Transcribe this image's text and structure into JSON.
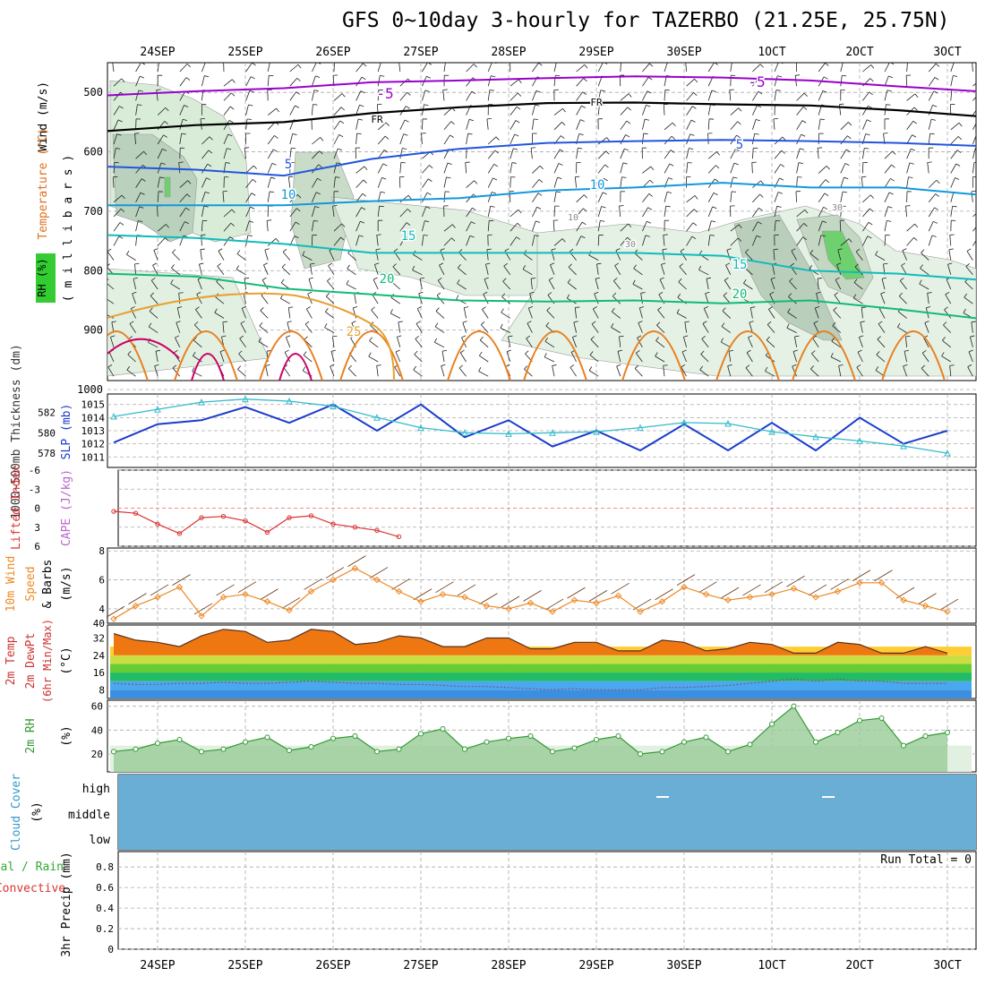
{
  "title": "GFS 0~10day 3-hourly for TAZERBO (21.25E, 25.75N)",
  "x_day_labels": [
    "24SEP",
    "25SEP",
    "26SEP",
    "27SEP",
    "28SEP",
    "29SEP",
    "30SEP",
    "1OCT",
    "2OCT",
    "3OCT"
  ],
  "colors": {
    "grid": "#aaaaaa",
    "temp_neg5": "#9900cc",
    "temp_fr": "#000000",
    "temp_5": "#2255dd",
    "temp_10": "#1199dd",
    "temp_15": "#11bbbb",
    "temp_20": "#11bb77",
    "temp_25": "#e8a030",
    "temp_30": "#e88020",
    "temp_35": "#cc0066",
    "slp": "#1a3ccc",
    "thickness": "#33bbcc",
    "lifted_index": "#dd3333",
    "wind_speed": "#ee8822",
    "cloud": "#6aaed6",
    "rh_line": "#339933",
    "rh_fill": "#99cc99"
  },
  "panels": {
    "upper": {
      "ylabel_left_parts": [
        "RH (%)",
        "Temperature (°C)",
        "Wind (m/s)"
      ],
      "ylabel_right": "( m i l l i b a r s )",
      "rh_legend_label": "RH (%)",
      "y_ticks": [
        "500",
        "600",
        "700",
        "800",
        "900",
        "1000"
      ],
      "contour_labels": [
        "-5",
        "FR",
        "5",
        "10",
        "15",
        "20",
        "25",
        "30",
        "10",
        "30",
        "-5",
        "FR",
        "5",
        "10",
        "15",
        "20"
      ]
    },
    "slp": {
      "ylabel_left": "1000~500mb Thickness (dm)",
      "ylabel_right": "SLP (mb)",
      "left_ticks": [
        "582",
        "580",
        "578"
      ],
      "right_ticks": [
        "1015",
        "1014",
        "1013",
        "1012",
        "1011"
      ]
    },
    "cape": {
      "ylabel_left": "Lifted Index",
      "ylabel_right": "CAPE (J/kg)",
      "ticks": [
        "-6",
        "-3",
        "0",
        "3",
        "6"
      ]
    },
    "wind": {
      "ylabel_1": "10m Wind",
      "ylabel_2": "Speed",
      "ylabel_3": "& Barbs",
      "unit": "(m/s)",
      "ticks": [
        "8",
        "6",
        "4",
        "40"
      ]
    },
    "temp": {
      "ylabel_1": "2m Temp",
      "ylabel_2": "2m DewPt",
      "ylabel_3": "(6hr Min/Max)",
      "unit": "(°C)",
      "ticks": [
        "32",
        "24",
        "16",
        "8"
      ]
    },
    "rh2m": {
      "ylabel": "2m RH",
      "unit": "(%)",
      "ticks": [
        "60",
        "40",
        "20"
      ]
    },
    "cloud": {
      "ylabel": "Cloud Cover",
      "unit": "(%)",
      "levels": [
        "high",
        "middle",
        "low"
      ]
    },
    "precip": {
      "ylabel_total": "Total / Rain",
      "ylabel_conv": "Convective",
      "ylabel_axis": "3hr Precip (mm)",
      "ticks": [
        "0.8",
        "0.6",
        "0.4",
        "0.2",
        "0"
      ],
      "run_total": "Run Total = 0"
    }
  },
  "chart_data": [
    {
      "type": "line",
      "name": "upper-air temperature contours (°C) vs pressure (mb)",
      "y_axis": "pressure_mb",
      "ylim": [
        1000,
        450
      ],
      "x_days": [
        0,
        1,
        2,
        3,
        4,
        5,
        6,
        7,
        8,
        9,
        9.5
      ],
      "series": [
        {
          "name": "-5",
          "values": [
            505,
            498,
            493,
            483,
            480,
            476,
            473,
            475,
            480,
            490,
            498
          ]
        },
        {
          "name": "FR",
          "values": [
            565,
            555,
            550,
            535,
            525,
            518,
            517,
            520,
            522,
            530,
            540
          ]
        },
        {
          "name": "5",
          "values": [
            625,
            630,
            640,
            612,
            595,
            585,
            582,
            580,
            582,
            585,
            590
          ]
        },
        {
          "name": "10",
          "values": [
            690,
            690,
            690,
            683,
            678,
            665,
            660,
            652,
            660,
            660,
            672
          ]
        },
        {
          "name": "15",
          "values": [
            740,
            745,
            755,
            770,
            770,
            770,
            770,
            775,
            800,
            805,
            815
          ]
        },
        {
          "name": "20",
          "values": [
            805,
            810,
            830,
            840,
            850,
            852,
            850,
            855,
            850,
            865,
            880
          ]
        }
      ]
    },
    {
      "type": "line",
      "name": "SLP and thickness",
      "x_days": [
        0,
        0.5,
        1,
        1.5,
        2,
        2.5,
        3,
        3.5,
        4,
        4.5,
        5,
        5.5,
        6,
        6.5,
        7,
        7.5,
        8,
        8.5,
        9,
        9.5
      ],
      "series": [
        {
          "name": "SLP",
          "values": [
            1012.1,
            1013.5,
            1013.8,
            1014.8,
            1013.6,
            1015.0,
            1013.0,
            1015.0,
            1012.5,
            1013.8,
            1011.8,
            1013.0,
            1011.5,
            1013.5,
            1011.5,
            1013.6,
            1011.5,
            1014.0,
            1012.0,
            1013.0
          ]
        },
        {
          "name": "Thickness",
          "values": [
            581.6,
            582.3,
            583.0,
            583.3,
            583.1,
            582.6,
            581.5,
            580.5,
            580.0,
            579.9,
            580.0,
            580.1,
            580.5,
            581.0,
            580.9,
            580.1,
            579.6,
            579.2,
            578.7,
            578.0
          ]
        }
      ]
    },
    {
      "type": "line",
      "name": "Lifted Index",
      "ylim": [
        6,
        -6
      ],
      "x_days": [
        0,
        0.25,
        0.5,
        0.75,
        1,
        1.25,
        1.5,
        1.75,
        2,
        2.25,
        2.5,
        2.75,
        3,
        3.25
      ],
      "series": [
        {
          "name": "Lifted Index",
          "values": [
            0.5,
            0.8,
            2.5,
            4.0,
            1.5,
            1.3,
            2.0,
            3.8,
            1.5,
            1.2,
            2.5,
            3.0,
            3.5,
            4.5
          ]
        }
      ]
    },
    {
      "type": "line",
      "name": "10m Wind Speed",
      "ylim": [
        3,
        8
      ],
      "x_days": [
        0,
        0.25,
        0.5,
        0.75,
        1,
        1.25,
        1.5,
        1.75,
        2,
        2.25,
        2.5,
        2.75,
        3,
        3.25,
        3.5,
        3.75,
        4,
        4.25,
        4.5,
        4.75,
        5,
        5.25,
        5.5,
        5.75,
        6,
        6.25,
        6.5,
        6.75,
        7,
        7.25,
        7.5,
        7.75,
        8,
        8.25,
        8.5,
        8.75,
        9,
        9.25,
        9.5
      ],
      "series": [
        {
          "name": "Speed",
          "values": [
            3.3,
            4.2,
            4.8,
            5.5,
            3.5,
            4.8,
            5.0,
            4.5,
            3.9,
            5.2,
            6.0,
            6.8,
            6.0,
            5.2,
            4.5,
            5.0,
            4.8,
            4.2,
            4.0,
            4.4,
            3.8,
            4.6,
            4.4,
            4.9,
            3.8,
            4.5,
            5.5,
            5.0,
            4.6,
            4.8,
            5.0,
            5.4,
            4.8,
            5.2,
            5.8,
            5.8,
            4.6,
            4.2,
            3.8
          ]
        }
      ]
    },
    {
      "type": "area",
      "name": "2m Temp and DewPt",
      "ylim": [
        4,
        38
      ],
      "x_days": [
        0,
        0.25,
        0.5,
        0.75,
        1,
        1.25,
        1.5,
        1.75,
        2,
        2.25,
        2.5,
        2.75,
        3,
        3.25,
        3.5,
        3.75,
        4,
        4.25,
        4.5,
        4.75,
        5,
        5.25,
        5.5,
        5.75,
        6,
        6.25,
        6.5,
        6.75,
        7,
        7.25,
        7.5,
        7.75,
        8,
        8.25,
        8.5,
        8.75,
        9,
        9.25,
        9.5
      ],
      "series": [
        {
          "name": "2m Temp",
          "values": [
            34,
            31,
            30,
            28,
            33,
            36,
            35,
            30,
            31,
            36,
            35,
            29,
            30,
            33,
            32,
            28,
            28,
            32,
            32,
            27,
            27,
            30,
            30,
            26,
            26,
            31,
            30,
            26,
            27,
            30,
            29,
            25,
            25,
            30,
            29,
            25,
            25,
            28,
            25
          ]
        },
        {
          "name": "2m DewPt",
          "values": [
            11,
            10.5,
            10.5,
            11,
            11,
            11.5,
            11,
            11,
            11.5,
            12,
            11.5,
            11,
            11,
            10.5,
            10.5,
            10,
            9.5,
            9.5,
            9,
            8.5,
            8,
            8.5,
            8,
            8,
            8,
            9,
            9,
            9.5,
            10,
            11,
            12,
            13,
            12,
            13,
            12,
            12,
            11,
            11,
            11
          ]
        }
      ]
    },
    {
      "type": "area",
      "name": "2m RH",
      "ylim": [
        5,
        65
      ],
      "x_days": [
        0,
        0.25,
        0.5,
        0.75,
        1,
        1.25,
        1.5,
        1.75,
        2,
        2.25,
        2.5,
        2.75,
        3,
        3.25,
        3.5,
        3.75,
        4,
        4.25,
        4.5,
        4.75,
        5,
        5.25,
        5.5,
        5.75,
        6,
        6.25,
        6.5,
        6.75,
        7,
        7.25,
        7.5,
        7.75,
        8,
        8.25,
        8.5,
        8.75,
        9,
        9.25,
        9.5
      ],
      "series": [
        {
          "name": "2m RH",
          "values": [
            22,
            24,
            29,
            32,
            22,
            24,
            30,
            34,
            23,
            26,
            33,
            35,
            22,
            24,
            37,
            41,
            24,
            30,
            33,
            35,
            22,
            25,
            32,
            35,
            20,
            22,
            30,
            34,
            22,
            28,
            45,
            60,
            30,
            38,
            48,
            50,
            27,
            35,
            38
          ]
        }
      ]
    },
    {
      "type": "bar",
      "name": "3hr Precip",
      "ylim": [
        0,
        0.95
      ],
      "series": [
        {
          "name": "Total / Rain",
          "values": []
        }
      ]
    }
  ]
}
